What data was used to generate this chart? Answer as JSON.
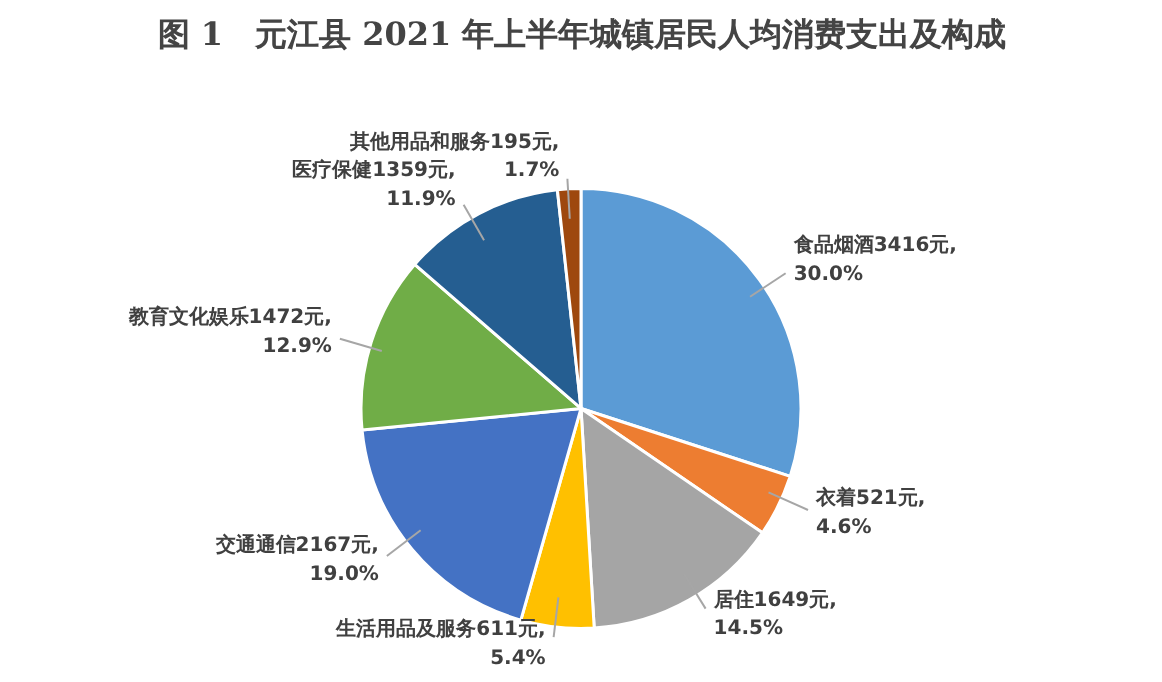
{
  "chart_data": {
    "type": "pie",
    "title": "图 1　元江县 2021 年上半年城镇居民人均消费支出及构成",
    "categories": [
      "食品烟酒",
      "衣着",
      "居住",
      "生活用品及服务",
      "交通通信",
      "教育文化娱乐",
      "医疗保健",
      "其他用品和服务"
    ],
    "values": [
      3416,
      521,
      1649,
      611,
      2167,
      1472,
      1359,
      195
    ],
    "value_labels": [
      "3416元, 30.0%",
      "521元, 4.6%",
      "1649元, 14.5%",
      "611元, 5.4%",
      "2167元, 19.0%",
      "1472元, 12.9%",
      "1359元, 11.9%",
      "195元, 1.7%"
    ],
    "colors": [
      "#5b9bd5",
      "#ed7d31",
      "#a5a5a5",
      "#ffc000",
      "#4472c4",
      "#70ad47",
      "#255e91",
      "#9e480e"
    ],
    "legend": false
  }
}
